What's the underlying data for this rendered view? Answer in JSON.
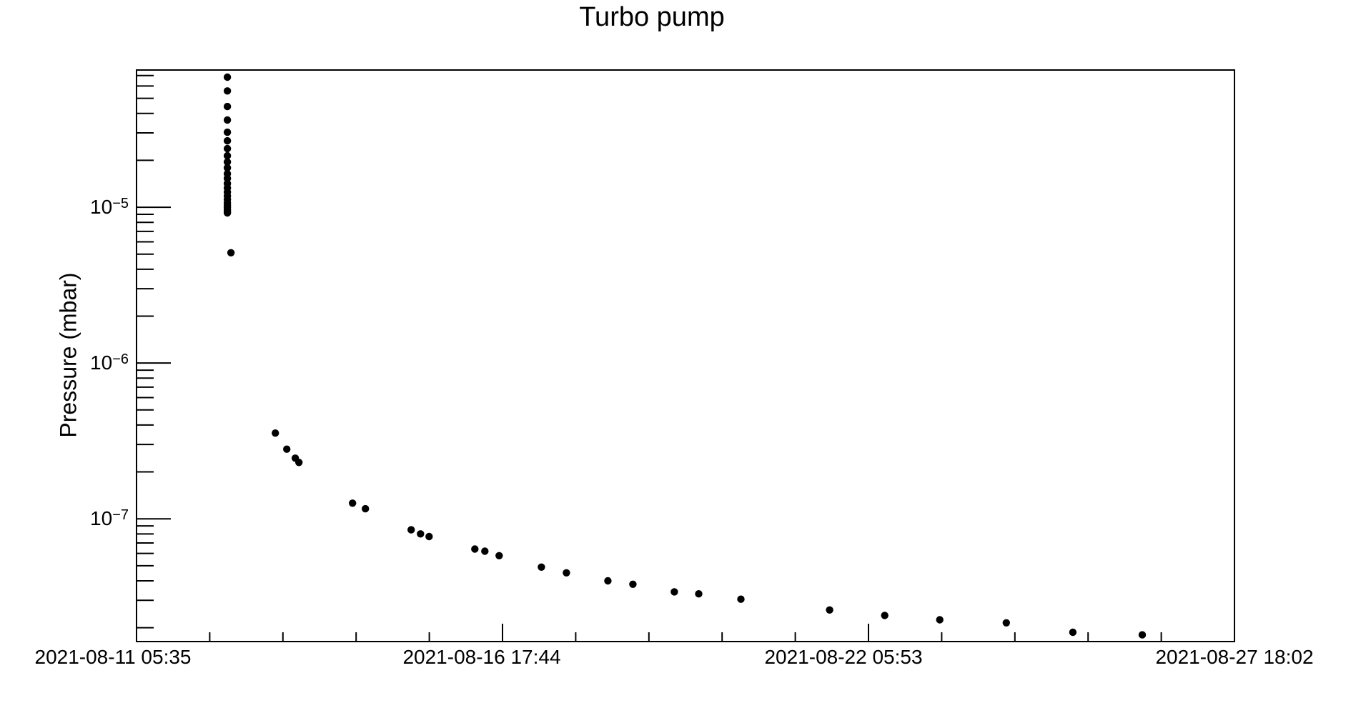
{
  "chart_data": {
    "type": "scatter",
    "title": "Turbo pump",
    "xlabel": "",
    "ylabel": "Pressure (mbar)",
    "background_color": "#ffffff",
    "marker": {
      "shape": "filled-circle",
      "color": "#000000"
    },
    "axis_color": "#000000",
    "y_scale": "log",
    "y_range": [
      1.63e-08,
      7.6e-05
    ],
    "y_major_ticks": [
      {
        "value": 1e-05,
        "base": "10",
        "exp": "−5"
      },
      {
        "value": 1e-06,
        "base": "10",
        "exp": "−6"
      },
      {
        "value": 1e-07,
        "base": "10",
        "exp": "−7"
      }
    ],
    "x_ticks": [
      "2021-08-11 05:35",
      "2021-08-16 17:44",
      "2021-08-22 05:53",
      "2021-08-27 18:02"
    ],
    "x_minor_divisions": 5,
    "grid": false,
    "legend": false,
    "points": [
      [
        "2021-08-12 14:23",
        6.84e-05
      ],
      [
        "2021-08-12 14:23",
        5.58e-05
      ],
      [
        "2021-08-12 14:23",
        4.43e-05
      ],
      [
        "2021-08-12 14:23",
        3.63e-05
      ],
      [
        "2021-08-12 14:23",
        3.03e-05
      ],
      [
        "2021-08-12 14:23",
        2.67e-05
      ],
      [
        "2021-08-12 14:23",
        2.38e-05
      ],
      [
        "2021-08-12 14:23",
        2.14e-05
      ],
      [
        "2021-08-12 14:23",
        1.95e-05
      ],
      [
        "2021-08-12 14:23",
        1.79e-05
      ],
      [
        "2021-08-12 14:23",
        1.64e-05
      ],
      [
        "2021-08-12 14:23",
        1.53e-05
      ],
      [
        "2021-08-12 14:23",
        1.42e-05
      ],
      [
        "2021-08-12 14:23",
        1.33e-05
      ],
      [
        "2021-08-12 14:23",
        1.25e-05
      ],
      [
        "2021-08-12 14:23",
        1.18e-05
      ],
      [
        "2021-08-12 14:23",
        1.12e-05
      ],
      [
        "2021-08-12 14:23",
        1.07e-05
      ],
      [
        "2021-08-12 14:23",
        1.03e-05
      ],
      [
        "2021-08-12 14:23",
        1e-05
      ],
      [
        "2021-08-12 14:23",
        9.7e-06
      ],
      [
        "2021-08-12 14:23",
        9.5e-06
      ],
      [
        "2021-08-12 14:23",
        9.3e-06
      ],
      [
        "2021-08-12 14:23",
        9.2e-06
      ],
      [
        "2021-08-12 15:40",
        5.1e-06
      ],
      [
        "2021-08-13 07:42",
        3.55e-07
      ],
      [
        "2021-08-13 11:50",
        2.8e-07
      ],
      [
        "2021-08-13 14:55",
        2.45e-07
      ],
      [
        "2021-08-13 16:13",
        2.3e-07
      ],
      [
        "2021-08-14 11:35",
        1.26e-07
      ],
      [
        "2021-08-14 16:14",
        1.16e-07
      ],
      [
        "2021-08-15 08:45",
        8.5e-08
      ],
      [
        "2021-08-15 12:07",
        8e-08
      ],
      [
        "2021-08-15 15:13",
        7.7e-08
      ],
      [
        "2021-08-16 07:45",
        6.4e-08
      ],
      [
        "2021-08-16 11:21",
        6.2e-08
      ],
      [
        "2021-08-16 16:31",
        5.8e-08
      ],
      [
        "2021-08-17 07:46",
        4.9e-08
      ],
      [
        "2021-08-17 16:48",
        4.5e-08
      ],
      [
        "2021-08-18 07:46",
        4e-08
      ],
      [
        "2021-08-18 16:49",
        3.8e-08
      ],
      [
        "2021-08-19 07:47",
        3.4e-08
      ],
      [
        "2021-08-19 16:35",
        3.3e-08
      ],
      [
        "2021-08-20 07:49",
        3.05e-08
      ],
      [
        "2021-08-21 15:51",
        2.6e-08
      ],
      [
        "2021-08-22 11:44",
        2.4e-08
      ],
      [
        "2021-08-23 07:37",
        2.25e-08
      ],
      [
        "2021-08-24 07:39",
        2.15e-08
      ],
      [
        "2021-08-25 07:40",
        1.87e-08
      ],
      [
        "2021-08-26 08:44",
        1.8e-08
      ]
    ]
  }
}
